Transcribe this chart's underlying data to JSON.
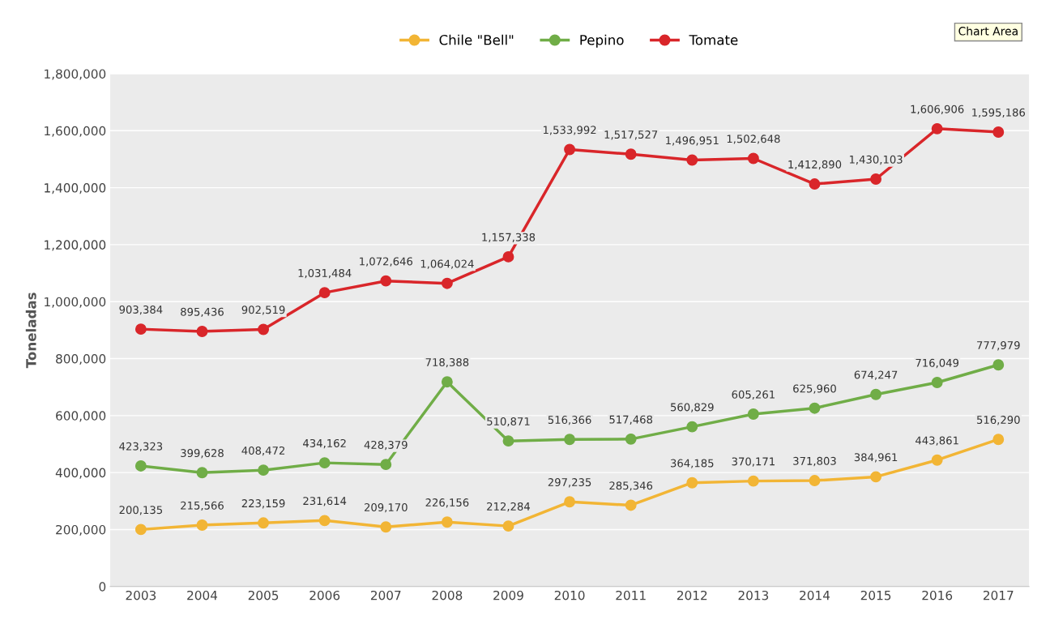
{
  "chart_data": {
    "type": "line",
    "ylabel": "Toneladas",
    "categories": [
      "2003",
      "2004",
      "2005",
      "2006",
      "2007",
      "2008",
      "2009",
      "2010",
      "2011",
      "2012",
      "2013",
      "2014",
      "2015",
      "2016",
      "2017"
    ],
    "series": [
      {
        "name": "Chile \"Bell\"",
        "color": "#f2b535",
        "values": [
          200135,
          215566,
          223159,
          231614,
          209170,
          226156,
          212284,
          297235,
          285346,
          364185,
          370171,
          371803,
          384961,
          443861,
          516290
        ],
        "value_labels": [
          "200,135",
          "215,566",
          "223,159",
          "231,614",
          "209,170",
          "226,156",
          "212,284",
          "297,235",
          "285,346",
          "364,185",
          "370,171",
          "371,803",
          "384,961",
          "443,861",
          "516,290"
        ]
      },
      {
        "name": "Pepino",
        "color": "#70ad47",
        "values": [
          423323,
          399628,
          408472,
          434162,
          428379,
          718388,
          510871,
          516366,
          517468,
          560829,
          605261,
          625960,
          674247,
          716049,
          777979
        ],
        "value_labels": [
          "423,323",
          "399,628",
          "408,472",
          "434,162",
          "428,379",
          "718,388",
          "510,871",
          "516,366",
          "517,468",
          "560,829",
          "605,261",
          "625,960",
          "674,247",
          "716,049",
          "777,979"
        ]
      },
      {
        "name": "Tomate",
        "color": "#d9262a",
        "values": [
          903384,
          895436,
          902519,
          1031484,
          1072646,
          1064024,
          1157338,
          1533992,
          1517527,
          1496951,
          1502648,
          1412890,
          1430103,
          1606906,
          1595186
        ],
        "value_labels": [
          "903,384",
          "895,436",
          "902,519",
          "1,031,484",
          "1,072,646",
          "1,064,024",
          "1,157,338",
          "1,533,992",
          "1,517,527",
          "1,496,951",
          "1,502,648",
          "1,412,890",
          "1,430,103",
          "1,606,906",
          "1,595,186"
        ]
      }
    ],
    "ylim": [
      0,
      1800000
    ],
    "yticks": [
      0,
      {
        "value": 200000,
        "label": "200,000"
      },
      {
        "value": 400000,
        "label": "400,000"
      },
      {
        "value": 600000,
        "label": "600,000"
      },
      {
        "value": 800000,
        "label": "800,000"
      },
      {
        "value": 1000000,
        "label": "1,000,000"
      },
      {
        "value": 1200000,
        "label": "1,200,000"
      },
      {
        "value": 1400000,
        "label": "1,400,000"
      },
      {
        "value": 1600000,
        "label": "1,600,000"
      },
      {
        "value": 1800000,
        "label": "1,800,000"
      }
    ],
    "grid": "y",
    "legend": "top",
    "marker": "circle",
    "line_style": "solid",
    "annotations": [
      "Chart Area"
    ]
  }
}
